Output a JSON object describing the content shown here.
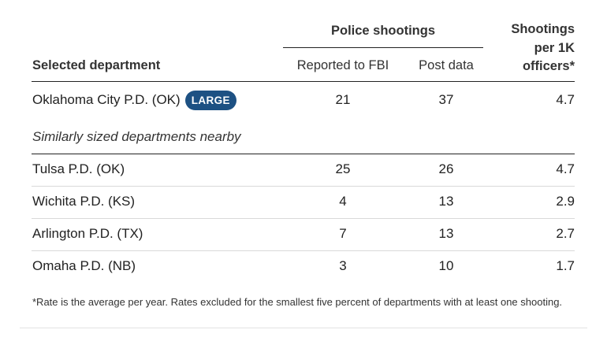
{
  "header": {
    "group_label": "Police shootings",
    "col_department": "Selected department",
    "col_fbi": "Reported to FBI",
    "col_post": "Post data",
    "col_rate_line1": "Shootings",
    "col_rate_line2": "per 1K",
    "col_rate_line3": "officers*"
  },
  "selected": {
    "name": "Oklahoma City P.D. (OK)",
    "badge": "LARGE",
    "badge_color": "#1d5183",
    "fbi": "21",
    "post": "37",
    "rate": "4.7"
  },
  "subsection_label": "Similarly sized departments nearby",
  "rows": [
    {
      "name": "Tulsa P.D. (OK)",
      "fbi": "25",
      "post": "26",
      "rate": "4.7"
    },
    {
      "name": "Wichita P.D. (KS)",
      "fbi": "4",
      "post": "13",
      "rate": "2.9"
    },
    {
      "name": "Arlington P.D. (TX)",
      "fbi": "7",
      "post": "13",
      "rate": "2.7"
    },
    {
      "name": "Omaha P.D. (NB)",
      "fbi": "3",
      "post": "10",
      "rate": "1.7"
    }
  ],
  "footnote": "*Rate is the average per year. Rates excluded for the smallest five percent of departments with at least one shooting."
}
